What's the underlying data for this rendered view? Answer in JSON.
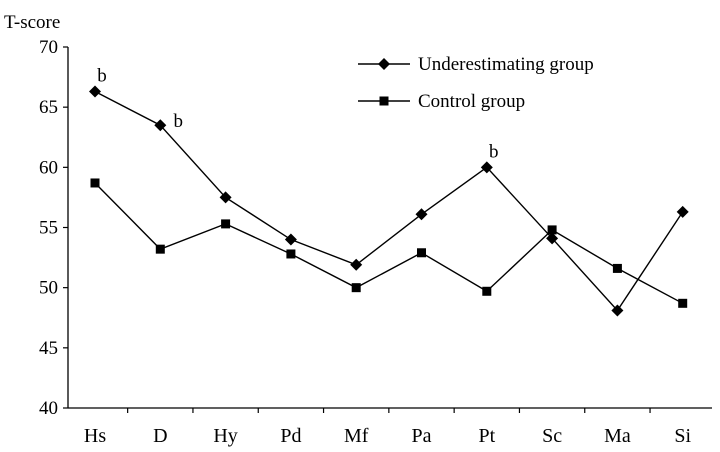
{
  "chart_data": {
    "type": "line",
    "ylabel": "T-score",
    "ylim": [
      40,
      70
    ],
    "yticks": [
      40,
      45,
      50,
      55,
      60,
      65,
      70
    ],
    "categories": [
      "Hs",
      "D",
      "Hy",
      "Pd",
      "Mf",
      "Pa",
      "Pt",
      "Sc",
      "Ma",
      "Si"
    ],
    "legend_position": "top-right",
    "series": [
      {
        "name": "Underestimating group",
        "marker": "diamond",
        "color": "#000000",
        "values": [
          66.3,
          63.5,
          57.5,
          54.0,
          51.9,
          56.1,
          60.0,
          54.1,
          48.1,
          56.3
        ]
      },
      {
        "name": "Control group",
        "marker": "square",
        "color": "#000000",
        "values": [
          58.7,
          53.2,
          55.3,
          52.8,
          50.0,
          52.9,
          49.7,
          54.8,
          51.6,
          48.7
        ]
      }
    ],
    "annotations": [
      {
        "text": "b",
        "series": 0,
        "category": "Hs"
      },
      {
        "text": "b",
        "series": 0,
        "category": "D"
      },
      {
        "text": "b",
        "series": 0,
        "category": "Pt"
      }
    ]
  }
}
